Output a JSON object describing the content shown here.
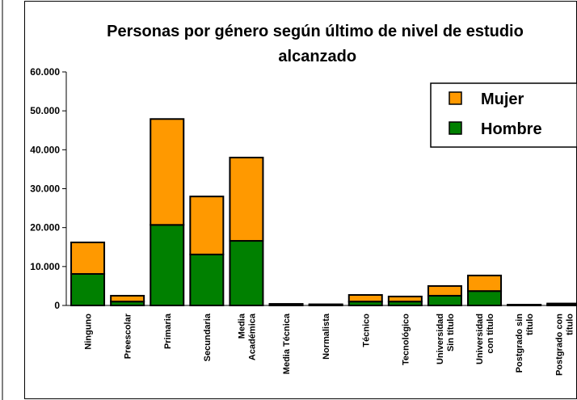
{
  "chart_data": {
    "type": "stacked_bar",
    "title": "Personas por género según último de nivel de estudio alcanzado",
    "categories": [
      "Ninguno",
      "Preescolar",
      "Primaria",
      "Secundaria",
      "Media Académica",
      "Media Técnica",
      "Normalista",
      "Técnico",
      "Tecnológico",
      "Universidad Sin título",
      "Universidad con título",
      "Postgrado sin título",
      "Postgrado con título"
    ],
    "series": [
      {
        "name": "Hombre",
        "color": "#008000",
        "values": [
          8100,
          1000,
          20700,
          13100,
          16600,
          200,
          100,
          1000,
          1000,
          2500,
          3700,
          100,
          300
        ]
      },
      {
        "name": "Mujer",
        "color": "#ff9900",
        "values": [
          8100,
          1500,
          27200,
          14900,
          21400,
          200,
          200,
          1700,
          1300,
          2500,
          4000,
          100,
          200
        ]
      }
    ],
    "ylim": [
      0,
      60000
    ],
    "yticks": [
      0,
      {
        "value": 10000,
        "label": "10.000"
      },
      {
        "value": 20000,
        "label": "20.000"
      },
      {
        "value": 30000,
        "label": "30.000"
      },
      {
        "value": 40000,
        "label": "40.000"
      },
      {
        "value": 50000,
        "label": "50.000"
      },
      {
        "value": 60000,
        "label": "60.000"
      }
    ],
    "legend": "upper right"
  }
}
